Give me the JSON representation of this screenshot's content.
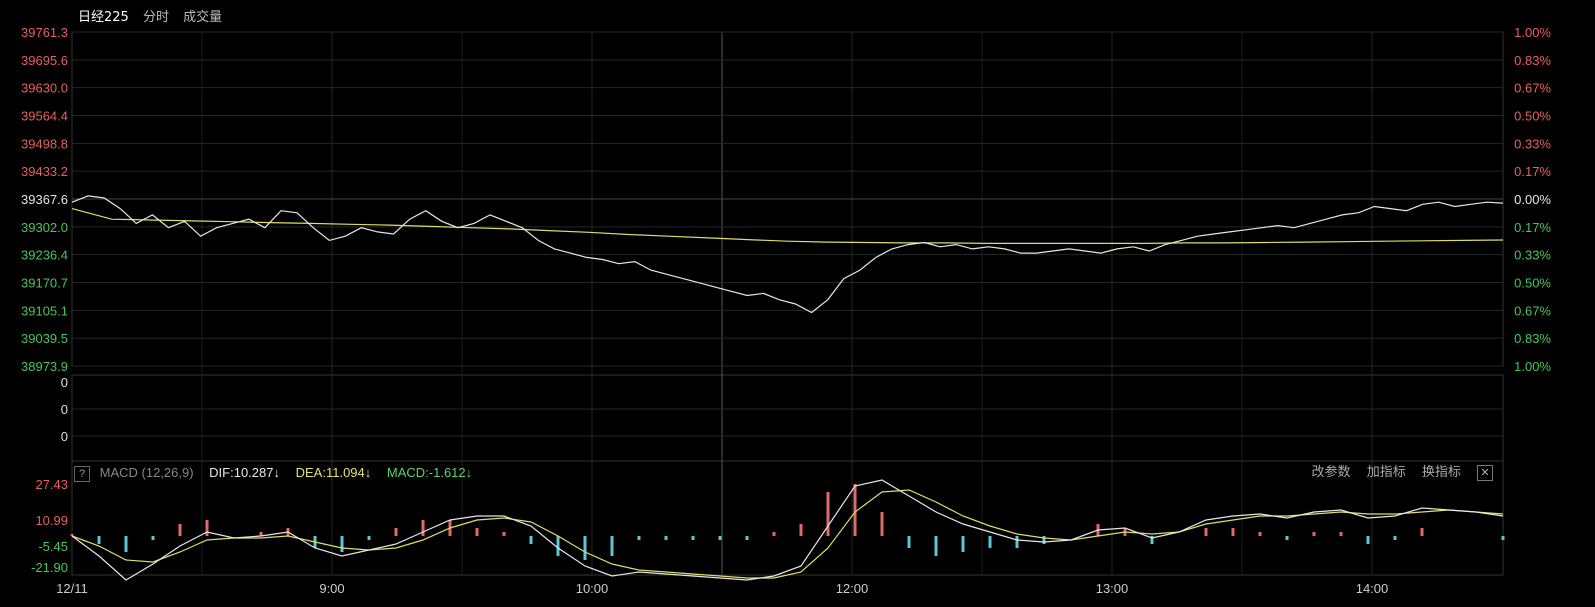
{
  "header": {
    "name": "日经225",
    "tab_timeshare": "分时",
    "tab_volume": "成交量"
  },
  "price_axis_left": [
    "39761.3",
    "39695.6",
    "39630.0",
    "39564.4",
    "39498.8",
    "39433.2",
    "39367.6",
    "39302.0",
    "39236.4",
    "39170.7",
    "39105.1",
    "39039.5",
    "38973.9"
  ],
  "price_axis_right": [
    "1.00%",
    "0.83%",
    "0.67%",
    "0.50%",
    "0.33%",
    "0.17%",
    "0.00%",
    "0.17%",
    "0.33%",
    "0.50%",
    "0.67%",
    "0.83%",
    "1.00%"
  ],
  "volume_axis": [
    "0",
    "0",
    "0"
  ],
  "macd_header": {
    "help": "?",
    "label": "MACD (12,26,9)",
    "dif": "DIF:10.287↓",
    "dea": "DEA:11.094↓",
    "macd": "MACD:-1.612↓"
  },
  "macd_tools": {
    "params": "改参数",
    "add": "加指标",
    "switch": "换指标",
    "close": "✕"
  },
  "macd_axis": [
    "27.43",
    "10.99",
    "-5.45",
    "-21.90"
  ],
  "time_axis": [
    "12/11",
    "9:00",
    "10:00",
    "12:00",
    "13:00",
    "14:00"
  ],
  "colors": {
    "up": "#e85f5f",
    "down": "#48c55a",
    "price_line": "#e6e6e6",
    "avg_line": "#e0dc6a",
    "hist_up": "#e06a6a",
    "hist_down": "#5bc8d6",
    "grid": "#2a2a2a"
  },
  "chart_data": {
    "type": "line",
    "title": "日经225",
    "ylim": [
      38973.9,
      39761.3
    ],
    "prev_close": 39367.6,
    "series": [
      {
        "name": "price",
        "values": [
          39360,
          39375,
          39370,
          39345,
          39310,
          39330,
          39300,
          39315,
          39280,
          39300,
          39310,
          39320,
          39300,
          39340,
          39335,
          39300,
          39270,
          39280,
          39300,
          39290,
          39285,
          39320,
          39340,
          39315,
          39300,
          39310,
          39330,
          39315,
          39300,
          39270,
          39250,
          39240,
          39230,
          39225,
          39215,
          39220,
          39200,
          39190,
          39180,
          39170,
          39160,
          39150,
          39140,
          39145,
          39130,
          39120,
          39100,
          39130,
          39180,
          39200,
          39230,
          39250,
          39260,
          39265,
          39255,
          39260,
          39250,
          39255,
          39250,
          39240,
          39240,
          39245,
          39250,
          39245,
          39240,
          39250,
          39255,
          39245,
          39260,
          39270,
          39280,
          39285,
          39290,
          39295,
          39300,
          39305,
          39300,
          39310,
          39320,
          39330,
          39335,
          39350,
          39345,
          39340,
          39355,
          39360,
          39350,
          39355,
          39360,
          39358
        ]
      },
      {
        "name": "average",
        "values": [
          39345,
          39320,
          39318,
          39316,
          39314,
          39312,
          39310,
          39308,
          39306,
          39303,
          39300,
          39297,
          39293,
          39289,
          39284,
          39280,
          39276,
          39272,
          39268,
          39266,
          39265,
          39264,
          39264,
          39263,
          39263,
          39263,
          39263,
          39263,
          39264,
          39264,
          39265,
          39266,
          39267,
          39268,
          39269,
          39270,
          39271
        ]
      }
    ],
    "macd": {
      "dif": [
        0,
        -10,
        -22,
        -14,
        -5,
        2,
        -1,
        0,
        2,
        -6,
        -10,
        -7,
        -4,
        2,
        8,
        10,
        10,
        5,
        -6,
        -15,
        -20,
        -18,
        -19,
        -20,
        -21,
        -22,
        -20,
        -15,
        5,
        25,
        28,
        20,
        12,
        6,
        2,
        -2,
        -3,
        -2,
        3,
        4,
        -1,
        2,
        8,
        10,
        11,
        9,
        12,
        13,
        9,
        10,
        14,
        13,
        12,
        10
      ],
      "dea": [
        0,
        -5,
        -12,
        -13,
        -8,
        -2,
        -1,
        -1,
        0,
        -3,
        -6,
        -7,
        -6,
        -2,
        4,
        8,
        9,
        7,
        0,
        -8,
        -14,
        -17,
        -18,
        -19,
        -20,
        -21,
        -21,
        -18,
        -6,
        12,
        22,
        23,
        17,
        10,
        5,
        1,
        -1,
        -2,
        0,
        2,
        1,
        2,
        6,
        8,
        10,
        10,
        11,
        12,
        11,
        11,
        12,
        13,
        12,
        11
      ],
      "hist": [
        1,
        -4,
        -8,
        -2,
        6,
        8,
        0,
        2,
        4,
        -6,
        -8,
        -2,
        4,
        8,
        8,
        4,
        2,
        -4,
        -10,
        -12,
        -10,
        -2,
        -2,
        -2,
        -2,
        -2,
        2,
        6,
        22,
        26,
        12,
        -6,
        -10,
        -8,
        -6,
        -6,
        -4,
        0,
        6,
        4,
        -4,
        0,
        4,
        4,
        2,
        -2,
        2,
        2,
        -4,
        -2,
        4,
        0,
        0,
        -2
      ]
    },
    "time_labels": [
      "12/11",
      "9:00",
      "10:00",
      "12:00",
      "13:00",
      "14:00"
    ]
  }
}
